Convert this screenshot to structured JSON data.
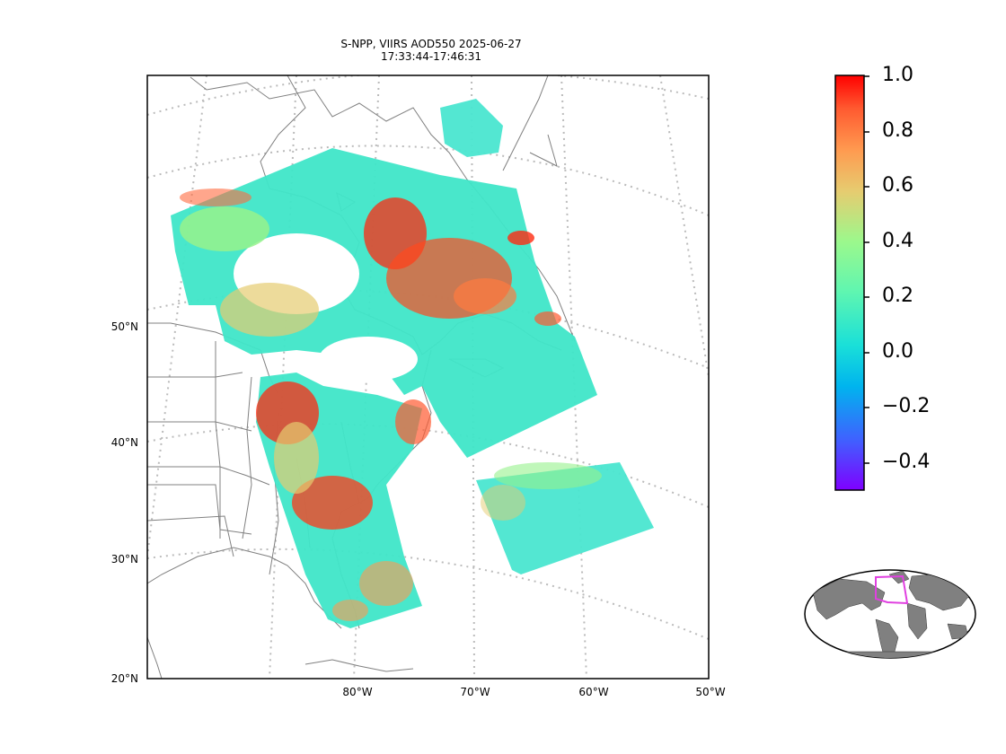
{
  "title": {
    "line1": "S-NPP, VIIRS AOD550 2025-06-27",
    "line2": "17:33:44-17:46:31"
  },
  "map": {
    "lat_labels": [
      "50°N",
      "40°N",
      "30°N",
      "20°N"
    ],
    "lon_labels": [
      "80°W",
      "70°W",
      "60°W",
      "50°W"
    ],
    "colors": {
      "coastline": "#808080",
      "graticule": "#bbbbbb",
      "low_aod": "#3fe6c8",
      "mid_aod": "#96f28c",
      "high_aod": "#ff2a10"
    }
  },
  "colorbar": {
    "labels": [
      "1.0",
      "0.8",
      "0.6",
      "0.4",
      "0.2",
      "0.0",
      "−0.2",
      "−0.4"
    ],
    "vmin": -0.5,
    "vmax": 1.0,
    "colormap": "rainbow"
  },
  "inset": {
    "description_icon": "globe-inset-icon",
    "box_color": "#e040e0",
    "land_color": "#808080"
  }
}
